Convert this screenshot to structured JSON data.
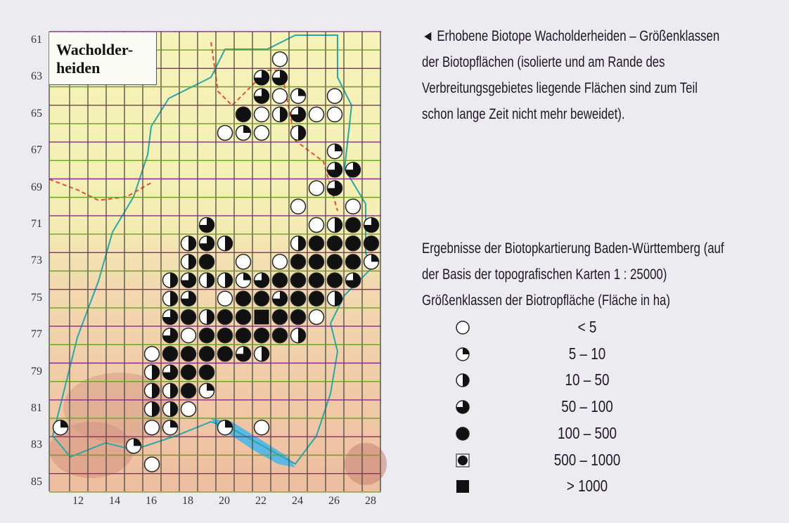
{
  "map": {
    "title_line1": "Wacholder-",
    "title_line2": "heiden",
    "x_ticks": [
      "12",
      "14",
      "16",
      "18",
      "20",
      "22",
      "24",
      "26",
      "28"
    ],
    "y_ticks": [
      "61",
      "63",
      "65",
      "67",
      "69",
      "71",
      "73",
      "75",
      "77",
      "79",
      "81",
      "83",
      "85"
    ],
    "colors": {
      "lake": "#5cb8e0",
      "river": "#2aa7a8",
      "border": "#e8502a",
      "grid_h_a": "#8a2a8a",
      "grid_h_b": "#6aa020",
      "grid_v": "#4a4a40"
    },
    "cells": [
      [
        23,
        62,
        0
      ],
      [
        22,
        63,
        3
      ],
      [
        23,
        63,
        3
      ],
      [
        22,
        64,
        3
      ],
      [
        23,
        64,
        0
      ],
      [
        24,
        64,
        1
      ],
      [
        26,
        64,
        0
      ],
      [
        21,
        65,
        4
      ],
      [
        22,
        65,
        0
      ],
      [
        23,
        65,
        2
      ],
      [
        24,
        65,
        3
      ],
      [
        25,
        65,
        0
      ],
      [
        26,
        65,
        0
      ],
      [
        20,
        66,
        0
      ],
      [
        21,
        66,
        1
      ],
      [
        22,
        66,
        0
      ],
      [
        24,
        66,
        2
      ],
      [
        26,
        67,
        1
      ],
      [
        26,
        68,
        3
      ],
      [
        27,
        68,
        3
      ],
      [
        25,
        69,
        0
      ],
      [
        26,
        69,
        3
      ],
      [
        24,
        70,
        0
      ],
      [
        27,
        70,
        0
      ],
      [
        19,
        71,
        3
      ],
      [
        25,
        71,
        0
      ],
      [
        26,
        71,
        2
      ],
      [
        27,
        71,
        4
      ],
      [
        28,
        71,
        3
      ],
      [
        18,
        72,
        2
      ],
      [
        19,
        72,
        3
      ],
      [
        20,
        72,
        2
      ],
      [
        24,
        72,
        2
      ],
      [
        25,
        72,
        4
      ],
      [
        26,
        72,
        4
      ],
      [
        27,
        72,
        4
      ],
      [
        28,
        72,
        4
      ],
      [
        18,
        73,
        2
      ],
      [
        19,
        73,
        4
      ],
      [
        21,
        73,
        0
      ],
      [
        23,
        73,
        0
      ],
      [
        24,
        73,
        4
      ],
      [
        25,
        73,
        4
      ],
      [
        26,
        73,
        4
      ],
      [
        27,
        73,
        4
      ],
      [
        28,
        73,
        1
      ],
      [
        17,
        74,
        2
      ],
      [
        18,
        74,
        3
      ],
      [
        19,
        74,
        2
      ],
      [
        20,
        74,
        2
      ],
      [
        21,
        74,
        1
      ],
      [
        22,
        74,
        3
      ],
      [
        23,
        74,
        4
      ],
      [
        24,
        74,
        4
      ],
      [
        25,
        74,
        4
      ],
      [
        26,
        74,
        4
      ],
      [
        27,
        74,
        3
      ],
      [
        17,
        75,
        2
      ],
      [
        18,
        75,
        3
      ],
      [
        20,
        75,
        0
      ],
      [
        21,
        75,
        4
      ],
      [
        22,
        75,
        4
      ],
      [
        23,
        75,
        3
      ],
      [
        24,
        75,
        4
      ],
      [
        25,
        75,
        4
      ],
      [
        26,
        75,
        2
      ],
      [
        17,
        76,
        3
      ],
      [
        18,
        76,
        4
      ],
      [
        19,
        76,
        2
      ],
      [
        20,
        76,
        4
      ],
      [
        21,
        76,
        4
      ],
      [
        22,
        76,
        6
      ],
      [
        23,
        76,
        4
      ],
      [
        24,
        76,
        4
      ],
      [
        25,
        76,
        0
      ],
      [
        17,
        77,
        3
      ],
      [
        18,
        77,
        0
      ],
      [
        19,
        77,
        4
      ],
      [
        20,
        77,
        4
      ],
      [
        21,
        77,
        4
      ],
      [
        22,
        77,
        4
      ],
      [
        23,
        77,
        4
      ],
      [
        24,
        77,
        2
      ],
      [
        16,
        78,
        0
      ],
      [
        17,
        78,
        4
      ],
      [
        18,
        78,
        4
      ],
      [
        19,
        78,
        4
      ],
      [
        20,
        78,
        4
      ],
      [
        21,
        78,
        3
      ],
      [
        22,
        78,
        2
      ],
      [
        16,
        79,
        2
      ],
      [
        17,
        79,
        3
      ],
      [
        18,
        79,
        4
      ],
      [
        19,
        79,
        4
      ],
      [
        16,
        80,
        2
      ],
      [
        17,
        80,
        2
      ],
      [
        18,
        80,
        4
      ],
      [
        19,
        80,
        1
      ],
      [
        16,
        81,
        2
      ],
      [
        17,
        81,
        2
      ],
      [
        18,
        81,
        0
      ],
      [
        11,
        82,
        1
      ],
      [
        16,
        82,
        0
      ],
      [
        17,
        82,
        1
      ],
      [
        20,
        82,
        1
      ],
      [
        22,
        82,
        0
      ],
      [
        15,
        83,
        1
      ],
      [
        16,
        84,
        0
      ]
    ]
  },
  "caption": {
    "lines": [
      "Erhobene Biotope Wacholderheiden – Größenklassen",
      "der Biotopflächen (isolierte und am Rande des",
      "Verbreitungsgebietes liegende Flächen sind zum Teil",
      "schon lange Zeit nicht mehr beweidet)."
    ],
    "arrow": "◄"
  },
  "source": {
    "lines": [
      "Ergebnisse der Biotopkartierung Baden-Württemberg (auf",
      "der Basis der topografischen Karten 1 : 25000)",
      "Größenklassen der Biotropfläche (Fläche in ha)"
    ]
  },
  "legend": [
    {
      "symbol": "circle-open",
      "label": "< 5"
    },
    {
      "symbol": "circle-quarter",
      "label": "5 – 10"
    },
    {
      "symbol": "circle-half",
      "label": "10 – 50"
    },
    {
      "symbol": "circle-three-quarter",
      "label": "50 – 100"
    },
    {
      "symbol": "circle-full",
      "label": "100 – 500"
    },
    {
      "symbol": "square-circle",
      "label": "500 – 1000"
    },
    {
      "symbol": "square-full",
      "label": "> 1000"
    }
  ]
}
